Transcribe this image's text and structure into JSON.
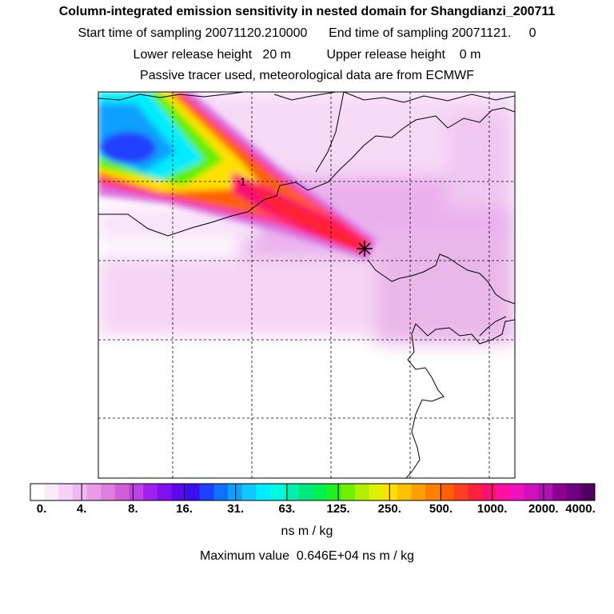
{
  "header": {
    "title": "Column-integrated emission sensitivity in nested domain for Shangdianzi_200711",
    "line2": "Start time of sampling 20071120.210000      End time of sampling 20071121.     0",
    "line3": "Lower release height   20 m          Upper release height    0 m",
    "line4": "Passive tracer used, meteorological data are from ECMWF"
  },
  "chart_data": {
    "type": "heatmap",
    "title": "Column-integrated emission sensitivity in nested domain for Shangdianzi_200711",
    "receptor": "Shangdianzi",
    "contour_label": "1",
    "grid": true,
    "colorbar": {
      "unit": "ns m / kg",
      "tick_labels": [
        "0.",
        "4.",
        "8.",
        "16.",
        "31.",
        "63.",
        "125.",
        "250.",
        "500.",
        "1000.",
        "2000.",
        "4000."
      ],
      "tick_values": [
        0,
        4,
        8,
        16,
        31,
        63,
        125,
        250,
        500,
        1000,
        2000,
        4000
      ],
      "colors": [
        "#ffffff",
        "#fbe8fb",
        "#f6d0f6",
        "#f0b8f0",
        "#e89ce8",
        "#de7ede",
        "#d15ed6",
        "#c040e6",
        "#a020f0",
        "#7f10f0",
        "#5a0af0",
        "#3a10f0",
        "#2040ff",
        "#1070ff",
        "#10a0ff",
        "#10c8ff",
        "#00ecff",
        "#00f8e0",
        "#00f0b0",
        "#00e880",
        "#00f050",
        "#20f020",
        "#70f000",
        "#b0f000",
        "#e0f000",
        "#ffe000",
        "#ffc000",
        "#ffa000",
        "#ff8000",
        "#ff6000",
        "#ff4020",
        "#ff2040",
        "#ff1070",
        "#ff10a0",
        "#f010c0",
        "#d010c0",
        "#b010b0",
        "#900090",
        "#700080",
        "#500060"
      ]
    },
    "max_value": "Maximum value  0.646E+04 ns m / kg"
  },
  "footer": {
    "unit_label": "ns m / kg",
    "max_label": "Maximum value  0.646E+04 ns m / kg"
  }
}
